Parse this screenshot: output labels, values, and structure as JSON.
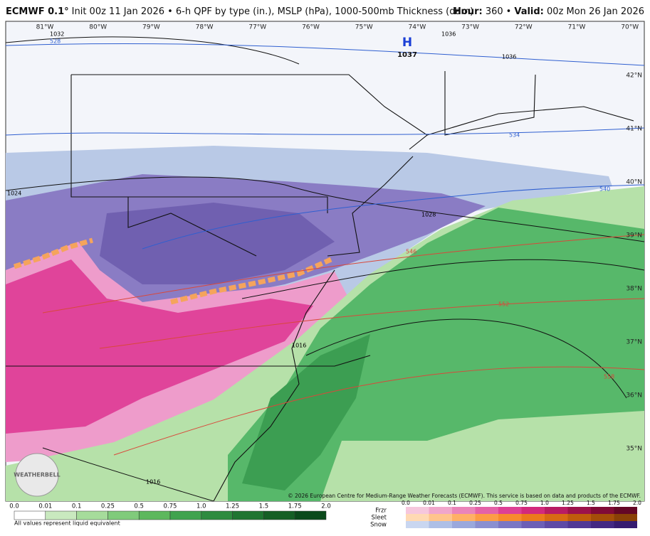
{
  "header": {
    "model": "ECMWF 0.1°",
    "description": "Init 00z 11 Jan 2026 • 6-h QPF by type (in.), MSLP (hPa), 1000-500mb Thickness (dam)",
    "hour_label": "Hour:",
    "hour_value": " 360",
    "separator": "•",
    "valid_label": "Valid:",
    "valid_value": " 00z Mon 26 Jan 2026"
  },
  "longitudes": [
    "81°W",
    "80°W",
    "79°W",
    "78°W",
    "77°W",
    "76°W",
    "75°W",
    "74°W",
    "73°W",
    "72°W",
    "71°W",
    "70°W"
  ],
  "latitudes": [
    "42°N",
    "41°N",
    "40°N",
    "39°N",
    "38°N",
    "37°N",
    "36°N",
    "35°N"
  ],
  "contour_labels": [
    "1032",
    "528",
    "1036",
    "1036",
    "1024",
    "534",
    "540",
    "1028",
    "546",
    "552",
    "558",
    "1016",
    "1016"
  ],
  "high_pressure": {
    "symbol": "H",
    "value": "1037"
  },
  "logo": "WEATHERBELL",
  "copyright": "© 2026 European Centre for Medium-Range Weather Forecasts (ECMWF). This service is based on data and products of the ECMWF.",
  "legend": {
    "rain_ticks": [
      "0.0",
      "0.01",
      "0.1",
      "0.25",
      "0.5",
      "0.75",
      "1.0",
      "1.25",
      "1.5",
      "1.75",
      "2.0"
    ],
    "note": "All values represent liquid equivalent",
    "mix_types": [
      "Frzr",
      "Sleet",
      "Snow"
    ],
    "mix_ticks": [
      "0.0",
      "0.01",
      "0.1",
      "0.25",
      "0.5",
      "0.75",
      "1.0",
      "1.25",
      "1.5",
      "1.75",
      "2.0"
    ]
  }
}
